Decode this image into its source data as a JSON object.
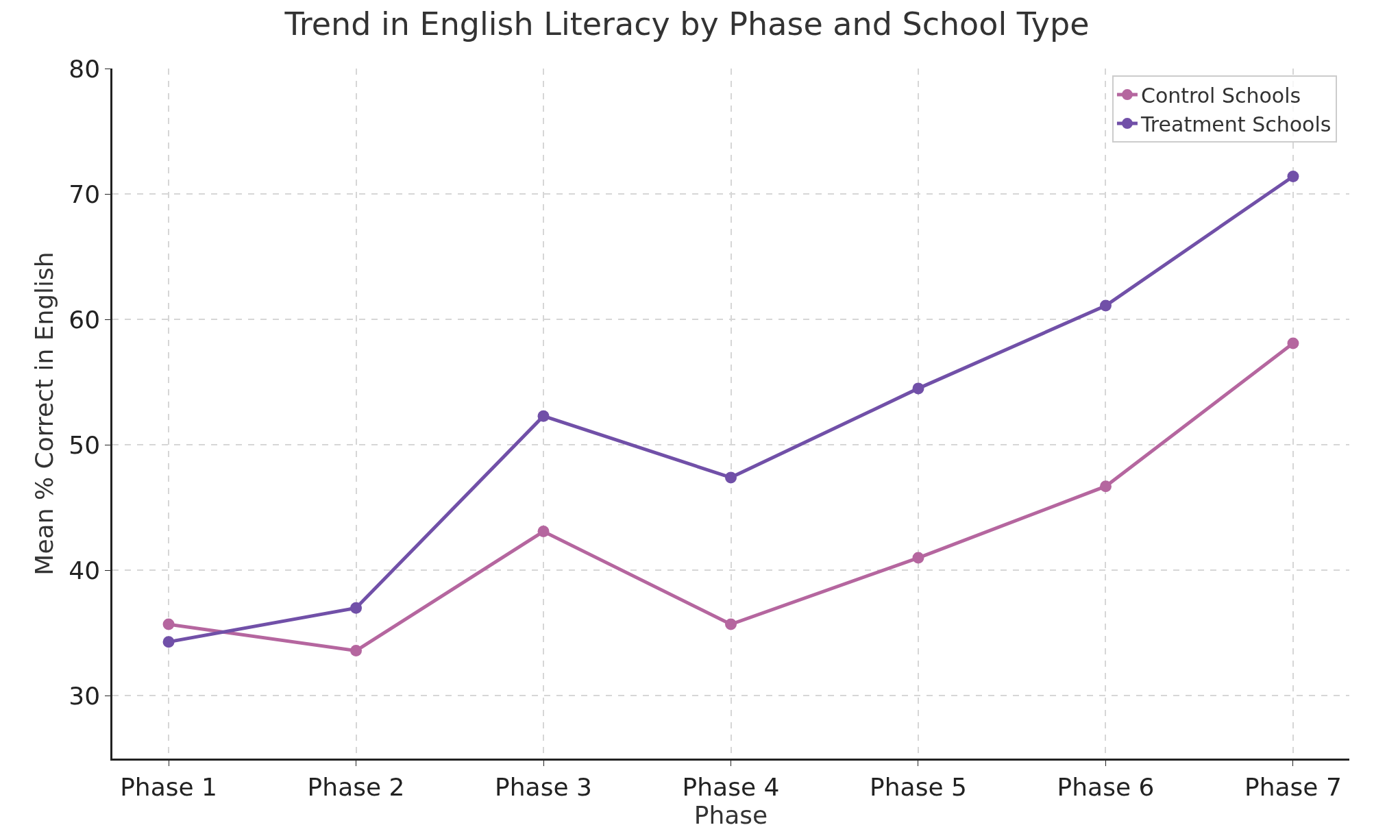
{
  "chart_data": {
    "type": "line",
    "title": "Trend in English Literacy by Phase and School Type",
    "xlabel": "Phase",
    "ylabel": "Mean % Correct in English",
    "categories": [
      "Phase 1",
      "Phase 2",
      "Phase 3",
      "Phase 4",
      "Phase 5",
      "Phase 6",
      "Phase 7"
    ],
    "series": [
      {
        "name": "Control Schools",
        "color": "#b5669f",
        "values": [
          35.7,
          33.6,
          43.1,
          35.7,
          41.0,
          46.7,
          58.1
        ]
      },
      {
        "name": "Treatment Schools",
        "color": "#7150a8",
        "values": [
          34.3,
          37.0,
          52.3,
          47.4,
          54.5,
          61.1,
          71.4
        ]
      }
    ],
    "ylim": [
      25,
      80
    ],
    "yticks": [
      30,
      40,
      50,
      60,
      70,
      80
    ],
    "grid": true,
    "legend": "top right",
    "marker": "circle",
    "line_style": "solid"
  }
}
